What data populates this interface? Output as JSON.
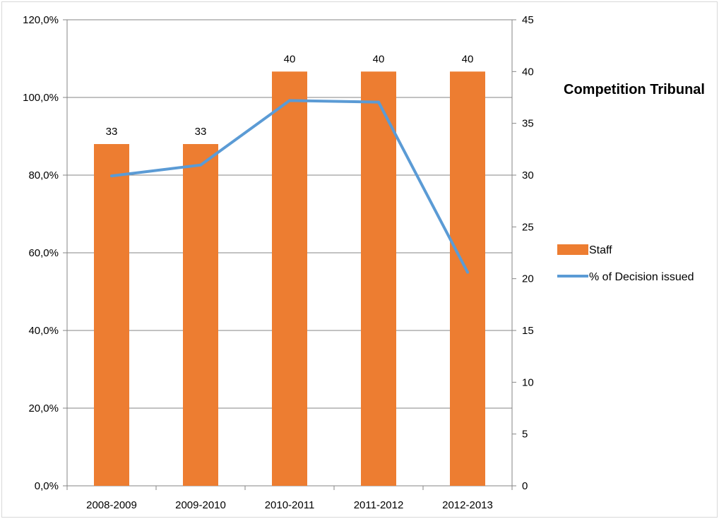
{
  "chart_data": {
    "type": "bar",
    "title": "Competition Tribunal",
    "categories": [
      "2008-2009",
      "2009-2010",
      "2010-2011",
      "2011-2012",
      "2012-2013"
    ],
    "series": [
      {
        "name": "Staff",
        "type": "bar",
        "axis": "right",
        "values": [
          33,
          33,
          40,
          40,
          40
        ],
        "data_labels": [
          "33",
          "33",
          "40",
          "40",
          "40"
        ],
        "color": "#ED7D31"
      },
      {
        "name": "% of Decision issued",
        "type": "line",
        "axis": "left",
        "values": [
          79.8,
          82.6,
          99.2,
          98.8,
          55.0
        ],
        "color": "#5B9BD5"
      }
    ],
    "y_left": {
      "ylim": [
        0,
        120
      ],
      "ticks": [
        0,
        20,
        40,
        60,
        80,
        100,
        120
      ],
      "tick_labels": [
        "0,0%",
        "20,0%",
        "40,0%",
        "60,0%",
        "80,0%",
        "100,0%",
        "120,0%"
      ]
    },
    "y_right": {
      "ylim": [
        0,
        45
      ],
      "ticks": [
        0,
        5,
        10,
        15,
        20,
        25,
        30,
        35,
        40,
        45
      ],
      "tick_labels": [
        "0",
        "5",
        "10",
        "15",
        "20",
        "25",
        "30",
        "35",
        "40",
        "45"
      ]
    },
    "grid": true,
    "legend": "right"
  }
}
